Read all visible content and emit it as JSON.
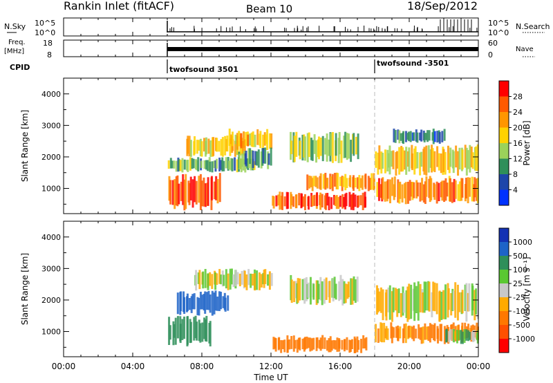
{
  "header": {
    "station": "Rankin Inlet (fitACF)",
    "beam": "Beam 10",
    "date": "18/Sep/2012"
  },
  "sky_panel": {
    "label": "N.Sky",
    "left_ticks": [
      "10^5",
      "10^0"
    ],
    "right_ticks": [
      "10^5",
      "10^0"
    ],
    "right_label": "N.Search"
  },
  "freq_panel": {
    "label_line1": "Freq.",
    "label_line2": "[MHz]",
    "left_ticks": [
      "18",
      "8"
    ],
    "right_ticks": [
      "60",
      "0"
    ],
    "right_label": "Nave"
  },
  "cpid": {
    "label": "CPID",
    "segments": [
      {
        "name": "twofsound 3501",
        "start_hour": 6.0
      },
      {
        "name": "twofsound -3501",
        "start_hour": 18.0
      }
    ]
  },
  "power_panel": {
    "ylabel": "Slant Range [km]",
    "cbar_label": "Power [dB]",
    "cbar_ticks": [
      "28",
      "24",
      "20",
      "16",
      "12",
      "8",
      "4"
    ],
    "cbar_colors": [
      "#ff0000",
      "#ff5a00",
      "#ff9600",
      "#ffd200",
      "#9bd25a",
      "#2f8f5a",
      "#1e46aa",
      "#0032ff"
    ]
  },
  "velocity_panel": {
    "ylabel": "Slant Range [km]",
    "cbar_label": "Velocity [m s⁻¹]",
    "cbar_ticks": [
      "1000",
      "500",
      "100",
      "25",
      "-25",
      "-100",
      "-500",
      "-1000"
    ],
    "cbar_colors": [
      "#1432b4",
      "#1e64c8",
      "#2f8f5a",
      "#5ac832",
      "#c8c8c8",
      "#ffaa00",
      "#ff7800",
      "#ff5000",
      "#ff0000"
    ]
  },
  "time_axis": {
    "xlabel": "Time UT",
    "ticks": [
      "00:00",
      "04:00",
      "08:00",
      "12:00",
      "16:00",
      "20:00",
      "00:00"
    ]
  },
  "chart_data": [
    {
      "type": "heatmap",
      "title": "Rankin Inlet (fitACF)  Beam 10  18/Sep/2012",
      "quantity": "Power",
      "xlabel": "Time UT",
      "ylabel": "Slant Range [km]",
      "xlim": [
        0,
        24
      ],
      "ylim": [
        200,
        4500
      ],
      "yticks": [
        1000,
        2000,
        3000,
        4000
      ],
      "colorbar": {
        "label": "Power [dB]",
        "range": [
          0,
          32
        ],
        "ticks": [
          4,
          8,
          12,
          16,
          20,
          24,
          28
        ]
      },
      "regions": [
        {
          "t0": 6.0,
          "t1": 9.0,
          "r0": 300,
          "r1": 1500,
          "value": 26
        },
        {
          "t0": 6.0,
          "t1": 11.0,
          "r0": 1500,
          "r1": 2000,
          "value": 12
        },
        {
          "t0": 7.0,
          "t1": 10.5,
          "r0": 2000,
          "r1": 2700,
          "value": 18
        },
        {
          "t0": 9.5,
          "t1": 12.0,
          "r0": 2200,
          "r1": 2900,
          "value": 20
        },
        {
          "t0": 10.0,
          "t1": 12.0,
          "r0": 1600,
          "r1": 2300,
          "value": 10
        },
        {
          "t0": 12.0,
          "t1": 17.5,
          "r0": 300,
          "r1": 900,
          "value": 27
        },
        {
          "t0": 14.0,
          "t1": 18.0,
          "r0": 900,
          "r1": 1500,
          "value": 22
        },
        {
          "t0": 13.0,
          "t1": 17.0,
          "r0": 1800,
          "r1": 2800,
          "value": 15
        },
        {
          "t0": 18.0,
          "t1": 24.0,
          "r0": 500,
          "r1": 1400,
          "value": 24
        },
        {
          "t0": 18.0,
          "t1": 24.0,
          "r0": 1400,
          "r1": 2400,
          "value": 19
        },
        {
          "t0": 19.0,
          "t1": 22.0,
          "r0": 2400,
          "r1": 2900,
          "value": 8
        }
      ]
    },
    {
      "type": "heatmap",
      "title": "Rankin Inlet (fitACF)  Beam 10  18/Sep/2012",
      "quantity": "Velocity",
      "xlabel": "Time UT",
      "ylabel": "Slant Range [km]",
      "xlim": [
        0,
        24
      ],
      "ylim": [
        200,
        4500
      ],
      "yticks": [
        1000,
        2000,
        3000,
        4000
      ],
      "colorbar": {
        "label": "Velocity [m s⁻¹]",
        "range": [
          -1000,
          1000
        ],
        "ticks": [
          -1000,
          -500,
          -100,
          -25,
          25,
          100,
          500,
          1000
        ]
      },
      "regions": [
        {
          "t0": 6.0,
          "t1": 8.5,
          "r0": 500,
          "r1": 1500,
          "value": 250
        },
        {
          "t0": 6.5,
          "t1": 9.5,
          "r0": 1500,
          "r1": 2300,
          "value": 700
        },
        {
          "t0": 7.5,
          "t1": 12.0,
          "r0": 2300,
          "r1": 3000,
          "value": 0
        },
        {
          "t0": 12.0,
          "t1": 17.5,
          "r0": 300,
          "r1": 900,
          "value": -300
        },
        {
          "t0": 13.0,
          "t1": 17.0,
          "r0": 1800,
          "r1": 2800,
          "value": 0
        },
        {
          "t0": 18.0,
          "t1": 24.0,
          "r0": 600,
          "r1": 1300,
          "value": -150
        },
        {
          "t0": 18.0,
          "t1": 24.0,
          "r0": 1300,
          "r1": 2600,
          "value": 0
        },
        {
          "t0": 22.0,
          "t1": 24.0,
          "r0": 600,
          "r1": 1100,
          "value": 60
        }
      ]
    }
  ]
}
